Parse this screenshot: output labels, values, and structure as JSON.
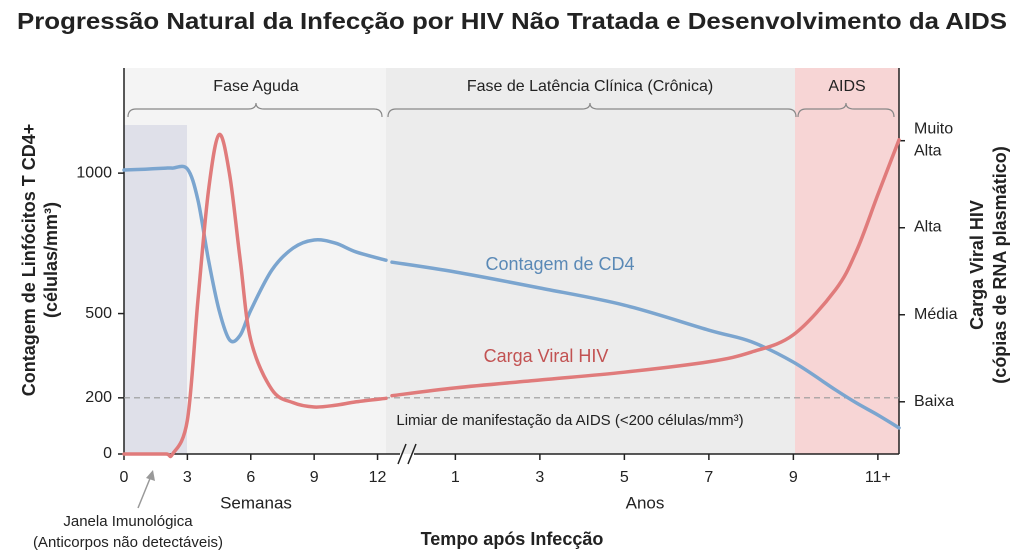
{
  "chart_data": {
    "type": "line",
    "title": "Progressão Natural da Infecção por HIV Não Tratada e Desenvolvimento da AIDS",
    "ylabel": [
      "Contagem de Linfócitos T CD4+",
      "(células/mm³)"
    ],
    "y2label": [
      "Carga Viral HIV",
      "(cópias de RNA plasmático)"
    ],
    "xlabel": "Tempo após Infecção",
    "ylim": [
      0,
      1385
    ],
    "yticks": [
      0,
      200,
      500,
      1000
    ],
    "y2lim": [
      0.4,
      4.87
    ],
    "y2ticks": [
      {
        "value": 1,
        "label": "Baixa"
      },
      {
        "value": 2,
        "label": "Média"
      },
      {
        "value": 3,
        "label": "Alta"
      },
      {
        "value": 4,
        "label": "Muito Alta"
      }
    ],
    "phases": [
      "Fase Aguda",
      "Fase de Latência Clínica (Crônica)",
      "AIDS"
    ],
    "threshold": {
      "value": 200,
      "label": "Limiar de manifestação da AIDS (<200 células/mm³)"
    },
    "window_note": [
      "Janela Imunológica",
      "(Anticorpos não detectáveis)"
    ],
    "series": [
      {
        "name": "Contagem de CD4",
        "color": "#7ba5cf"
      },
      {
        "name": "Carga Viral HIV",
        "color": "#e07b7b",
        "axis": "y2"
      }
    ],
    "panels": [
      {
        "xlabel": "Semanas",
        "xlim": [
          0,
          12.4
        ],
        "xticks": [
          0,
          3,
          6,
          9,
          12
        ],
        "x": [
          0,
          1,
          2,
          2.3,
          3,
          3.5,
          4,
          4.5,
          5,
          5.5,
          6,
          7,
          8,
          9,
          10,
          11,
          12.4
        ],
        "series": [
          {
            "values": [
              1011,
              1014,
              1018,
              1018,
              1015,
              904,
              690,
              512,
              406,
              423,
              512,
              655,
              733,
              762,
              751,
              719,
              690
            ]
          },
          {
            "values": [
              0.4,
              0.4,
              0.4,
              0.4,
              0.79,
              2.17,
              3.43,
              4.07,
              3.61,
              2.63,
              1.71,
              1.14,
              0.99,
              0.94,
              0.96,
              1.0,
              1.04
            ]
          }
        ]
      },
      {
        "xlabel": "Anos",
        "xlim": [
          -0.5,
          11.5
        ],
        "xticks": [
          1,
          3,
          5,
          7,
          9,
          {
            "value": 11,
            "label": "11+"
          }
        ],
        "x": [
          -0.5,
          1,
          3,
          5,
          7,
          8,
          9,
          10,
          10.5,
          11,
          11.5
        ],
        "series": [
          {
            "values": [
              683,
              648,
              591,
              530,
              441,
              400,
              327,
              228,
              181,
              139,
              93
            ]
          },
          {
            "values": [
              1.07,
              1.16,
              1.25,
              1.34,
              1.46,
              1.57,
              1.77,
              2.29,
              2.74,
              3.38,
              4.01
            ]
          }
        ]
      }
    ]
  }
}
